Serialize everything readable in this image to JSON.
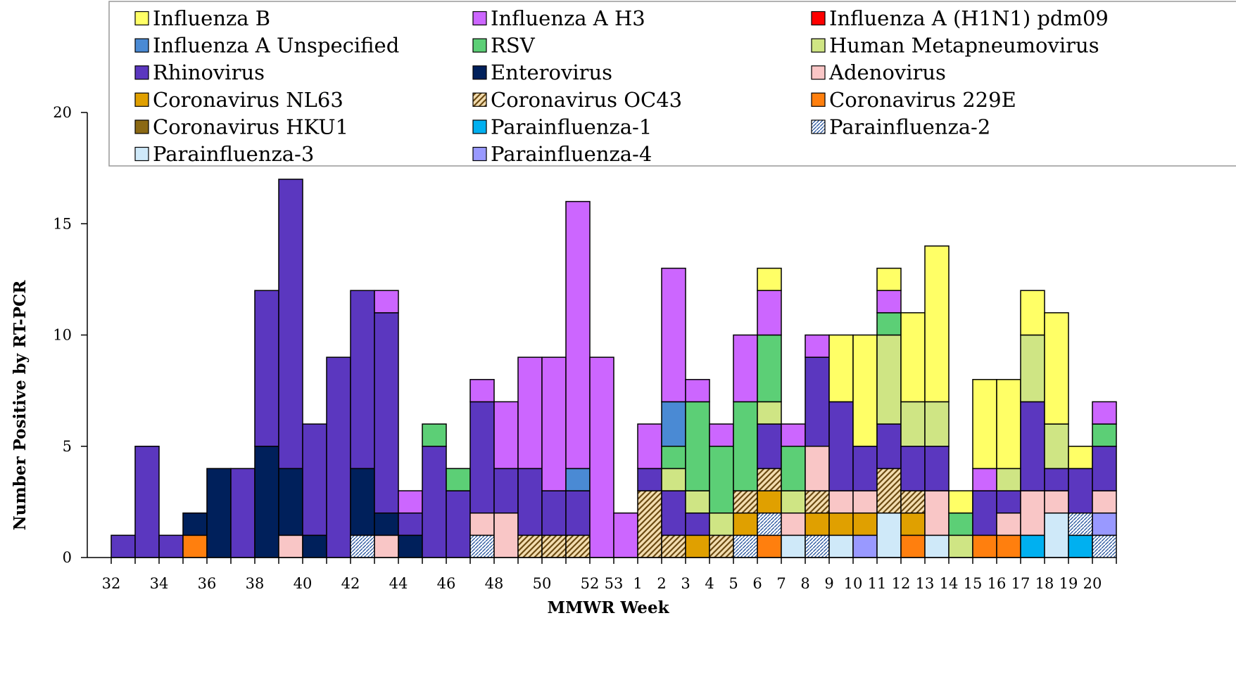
{
  "chart_data": {
    "type": "bar",
    "stacked": true,
    "title": "",
    "xlabel": "MMWR Week",
    "ylabel": "Number Positive by RT-PCR",
    "ylim": [
      0,
      20
    ],
    "yticks": [
      0,
      5,
      10,
      15,
      20
    ],
    "grid": false,
    "legend_position": "top",
    "categories": [
      "32",
      "33",
      "34",
      "35",
      "36",
      "37",
      "38",
      "39",
      "40",
      "41",
      "42",
      "43",
      "44",
      "45",
      "46",
      "47",
      "48",
      "49",
      "50",
      "51",
      "52",
      "53",
      "1",
      "2",
      "3",
      "4",
      "5",
      "6",
      "7",
      "8",
      "9",
      "10",
      "11",
      "12",
      "13",
      "14",
      "15",
      "16",
      "17",
      "18",
      "19",
      "20"
    ],
    "tick_labels": [
      "32",
      "",
      "34",
      "",
      "36",
      "",
      "38",
      "",
      "40",
      "",
      "42",
      "",
      "44",
      "",
      "46",
      "",
      "48",
      "",
      "50",
      "",
      "52",
      "53",
      "1",
      "2",
      "3",
      "4",
      "5",
      "6",
      "7",
      "8",
      "9",
      "10",
      "11",
      "12",
      "13",
      "14",
      "15",
      "16",
      "17",
      "18",
      "19",
      "20"
    ],
    "series": [
      {
        "name": "Coronavirus 229E",
        "color": "#ff7f0e",
        "pattern": "solid",
        "values": [
          0,
          0,
          0,
          1,
          0,
          0,
          0,
          0,
          0,
          0,
          0,
          0,
          0,
          0,
          0,
          0,
          0,
          0,
          0,
          0,
          0,
          0,
          0,
          0,
          0,
          0,
          0,
          1,
          0,
          0,
          0,
          0,
          0,
          1,
          0,
          0,
          1,
          1,
          0,
          0,
          0,
          0
        ]
      },
      {
        "name": "Parainfluenza-1",
        "color": "#00b0f0",
        "pattern": "solid",
        "values": [
          0,
          0,
          0,
          0,
          0,
          0,
          0,
          0,
          0,
          0,
          0,
          0,
          0,
          0,
          0,
          0,
          0,
          0,
          0,
          0,
          0,
          0,
          0,
          0,
          0,
          0,
          0,
          0,
          0,
          0,
          0,
          0,
          0,
          0,
          0,
          0,
          0,
          0,
          1,
          0,
          1,
          0
        ]
      },
      {
        "name": "Parainfluenza-2",
        "color": "#dae6f4",
        "pattern": "dots",
        "values": [
          0,
          0,
          0,
          0,
          0,
          0,
          0,
          0,
          0,
          0,
          1,
          0,
          0,
          0,
          0,
          1,
          0,
          0,
          0,
          0,
          0,
          0,
          0,
          0,
          0,
          0,
          1,
          1,
          0,
          1,
          0,
          0,
          0,
          0,
          0,
          0,
          0,
          0,
          0,
          0,
          1,
          1
        ]
      },
      {
        "name": "Parainfluenza-3",
        "color": "#cfe9f9",
        "pattern": "solid",
        "values": [
          0,
          0,
          0,
          0,
          0,
          0,
          0,
          0,
          0,
          0,
          0,
          0,
          0,
          0,
          0,
          0,
          0,
          0,
          0,
          0,
          0,
          0,
          0,
          0,
          0,
          0,
          0,
          0,
          1,
          0,
          1,
          0,
          2,
          0,
          1,
          0,
          0,
          0,
          0,
          2,
          0,
          0
        ]
      },
      {
        "name": "Parainfluenza-4",
        "color": "#9999ff",
        "pattern": "solid",
        "values": [
          0,
          0,
          0,
          0,
          0,
          0,
          0,
          0,
          0,
          0,
          0,
          0,
          0,
          0,
          0,
          0,
          0,
          0,
          0,
          0,
          0,
          0,
          0,
          0,
          0,
          0,
          0,
          0,
          0,
          0,
          0,
          1,
          0,
          0,
          0,
          0,
          0,
          0,
          0,
          0,
          0,
          1
        ]
      },
      {
        "name": "Coronavirus NL63",
        "color": "#e0a000",
        "pattern": "solid",
        "values": [
          0,
          0,
          0,
          0,
          0,
          0,
          0,
          0,
          0,
          0,
          0,
          0,
          0,
          0,
          0,
          0,
          0,
          0,
          0,
          0,
          0,
          0,
          0,
          0,
          1,
          0,
          1,
          1,
          0,
          1,
          1,
          1,
          0,
          1,
          0,
          0,
          0,
          0,
          0,
          0,
          0,
          0
        ]
      },
      {
        "name": "Coronavirus OC43",
        "color": "#b08d3a",
        "pattern": "hatch",
        "values": [
          0,
          0,
          0,
          0,
          0,
          0,
          0,
          0,
          0,
          0,
          0,
          0,
          0,
          0,
          0,
          0,
          0,
          1,
          1,
          1,
          0,
          0,
          3,
          1,
          0,
          1,
          1,
          1,
          0,
          1,
          0,
          0,
          2,
          1,
          0,
          0,
          0,
          0,
          0,
          0,
          0,
          0
        ]
      },
      {
        "name": "Adenovirus",
        "color": "#f9c6c6",
        "pattern": "solid",
        "values": [
          0,
          0,
          0,
          0,
          0,
          0,
          0,
          1,
          0,
          0,
          0,
          1,
          0,
          0,
          0,
          1,
          2,
          0,
          0,
          0,
          0,
          0,
          0,
          0,
          0,
          0,
          0,
          0,
          1,
          2,
          1,
          1,
          0,
          0,
          2,
          0,
          0,
          1,
          2,
          1,
          0,
          1
        ]
      },
      {
        "name": "Enterovirus",
        "color": "#00205b",
        "pattern": "solid",
        "values": [
          0,
          0,
          0,
          1,
          4,
          0,
          5,
          3,
          1,
          0,
          3,
          1,
          1,
          0,
          0,
          0,
          0,
          0,
          0,
          0,
          0,
          0,
          0,
          0,
          0,
          0,
          0,
          0,
          0,
          0,
          0,
          0,
          0,
          0,
          0,
          0,
          0,
          0,
          0,
          0,
          0,
          0
        ]
      },
      {
        "name": "Rhinovirus",
        "color": "#5b37bf",
        "pattern": "solid",
        "values": [
          1,
          5,
          1,
          0,
          0,
          4,
          7,
          13,
          5,
          9,
          8,
          9,
          1,
          5,
          3,
          5,
          2,
          3,
          2,
          2,
          0,
          0,
          1,
          2,
          1,
          0,
          0,
          2,
          0,
          4,
          4,
          2,
          2,
          2,
          2,
          0,
          2,
          1,
          4,
          1,
          2,
          2
        ]
      },
      {
        "name": "Human Metapneumovirus",
        "color": "#cfe584",
        "pattern": "solid",
        "values": [
          0,
          0,
          0,
          0,
          0,
          0,
          0,
          0,
          0,
          0,
          0,
          0,
          0,
          0,
          0,
          0,
          0,
          0,
          0,
          0,
          0,
          0,
          0,
          1,
          1,
          1,
          0,
          1,
          1,
          0,
          0,
          0,
          4,
          2,
          2,
          1,
          0,
          1,
          3,
          2,
          0,
          0
        ]
      },
      {
        "name": "RSV",
        "color": "#5ccf76",
        "pattern": "solid",
        "values": [
          0,
          0,
          0,
          0,
          0,
          0,
          0,
          0,
          0,
          0,
          0,
          0,
          0,
          1,
          1,
          0,
          0,
          0,
          0,
          0,
          0,
          0,
          0,
          1,
          4,
          3,
          4,
          3,
          2,
          0,
          0,
          0,
          1,
          0,
          0,
          1,
          0,
          0,
          0,
          0,
          0,
          1
        ]
      },
      {
        "name": "Influenza A Unspecified",
        "color": "#4a8ad4",
        "pattern": "solid",
        "values": [
          0,
          0,
          0,
          0,
          0,
          0,
          0,
          0,
          0,
          0,
          0,
          0,
          0,
          0,
          0,
          0,
          0,
          0,
          0,
          1,
          0,
          0,
          0,
          2,
          0,
          0,
          0,
          0,
          0,
          0,
          0,
          0,
          0,
          0,
          0,
          0,
          0,
          0,
          0,
          0,
          0,
          0
        ]
      },
      {
        "name": "Influenza A H3",
        "color": "#cc66ff",
        "pattern": "solid",
        "values": [
          0,
          0,
          0,
          0,
          0,
          0,
          0,
          0,
          0,
          0,
          0,
          1,
          1,
          0,
          0,
          1,
          3,
          5,
          6,
          12,
          9,
          2,
          2,
          6,
          1,
          1,
          3,
          2,
          1,
          1,
          0,
          0,
          1,
          0,
          0,
          0,
          1,
          0,
          0,
          0,
          0,
          1
        ]
      },
      {
        "name": "Influenza B",
        "color": "#ffff66",
        "pattern": "solid",
        "values": [
          0,
          0,
          0,
          0,
          0,
          0,
          0,
          0,
          0,
          0,
          0,
          0,
          0,
          0,
          0,
          0,
          0,
          0,
          0,
          0,
          0,
          0,
          0,
          0,
          0,
          0,
          0,
          1,
          0,
          0,
          3,
          5,
          1,
          4,
          7,
          1,
          4,
          4,
          2,
          5,
          1,
          0
        ]
      },
      {
        "name": "Influenza A (H1N1) pdm09",
        "color": "#ff0000",
        "pattern": "solid",
        "values": [
          0,
          0,
          0,
          0,
          0,
          0,
          0,
          0,
          0,
          0,
          0,
          0,
          0,
          0,
          0,
          0,
          0,
          0,
          0,
          0,
          0,
          0,
          0,
          0,
          0,
          0,
          0,
          0,
          0,
          0,
          0,
          0,
          0,
          0,
          0,
          0,
          0,
          0,
          0,
          0,
          0,
          0
        ]
      },
      {
        "name": "Coronavirus HKU1",
        "color": "#8b6914",
        "pattern": "solid",
        "values": [
          0,
          0,
          0,
          0,
          0,
          0,
          0,
          0,
          0,
          0,
          0,
          0,
          0,
          0,
          0,
          0,
          0,
          0,
          0,
          0,
          0,
          0,
          0,
          0,
          0,
          0,
          0,
          0,
          0,
          0,
          0,
          0,
          0,
          0,
          0,
          0,
          0,
          0,
          0,
          0,
          0,
          0
        ]
      }
    ],
    "legend_order": [
      "Influenza B",
      "Influenza A H3",
      "Influenza A (H1N1) pdm09",
      "Influenza A Unspecified",
      "RSV",
      "Human Metapneumovirus",
      "Rhinovirus",
      "Enterovirus",
      "Adenovirus",
      "Coronavirus NL63",
      "Coronavirus OC43",
      "Coronavirus 229E",
      "Coronavirus HKU1",
      "Parainfluenza-1",
      "Parainfluenza-2",
      "Parainfluenza-3",
      "Parainfluenza-4"
    ]
  }
}
